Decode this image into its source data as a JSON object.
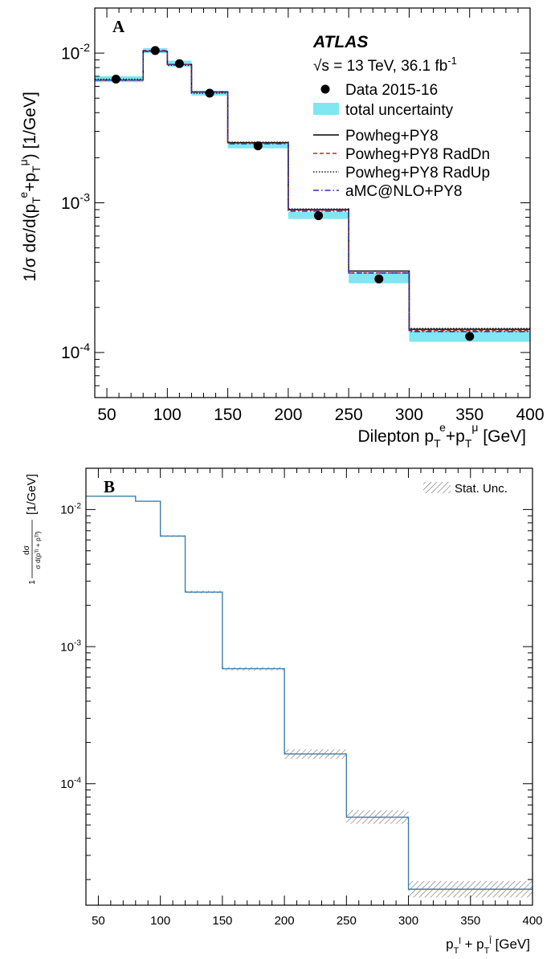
{
  "chart_data": [
    {
      "panel_label": "A",
      "type": "line",
      "xlabel": "Dilepton p_T^e + p_T^μ [GeV]",
      "ylabel": "1/σ dσ/d(p_T^e + p_T^μ) [1/GeV]",
      "xlim": [
        40,
        400
      ],
      "ylim": [
        5e-05,
        0.02
      ],
      "yscale": "log",
      "xticks": [
        50,
        100,
        150,
        200,
        250,
        300,
        350,
        400
      ],
      "yticks": [
        "10^-4",
        "10^-3",
        "10^-2"
      ],
      "experiment": "ATLAS",
      "energy_label": "√s = 13 TeV, 36.1 fb⁻¹",
      "legend_position": "top-right",
      "bin_edges": [
        40,
        80,
        100,
        120,
        150,
        200,
        250,
        300,
        400
      ],
      "series": [
        {
          "name": "Data 2015-16",
          "style": "points",
          "color": "#000000",
          "x": [
            57.5,
            90,
            110,
            135,
            175,
            225,
            275,
            350
          ],
          "values": [
            0.0067,
            0.0104,
            0.0085,
            0.0054,
            0.0024,
            0.00082,
            0.00031,
            0.000128
          ]
        },
        {
          "name": "total uncertainty",
          "style": "band",
          "color": "#7fe6f2",
          "low": [
            0.0064,
            0.01,
            0.0081,
            0.0052,
            0.00231,
            0.00078,
            0.00029,
            0.000118
          ],
          "high": [
            0.007,
            0.0108,
            0.0089,
            0.0056,
            0.0025,
            0.00087,
            0.00034,
            0.00014
          ]
        },
        {
          "name": "Powheg+PY8",
          "style": "step-solid",
          "color": "#000000",
          "values": [
            0.0066,
            0.0103,
            0.0084,
            0.0055,
            0.00252,
            0.0009,
            0.00035,
            0.000143
          ]
        },
        {
          "name": "Powheg+PY8 RadDn",
          "style": "step-dashed",
          "color": "#cc2222",
          "values": [
            0.0066,
            0.0104,
            0.0084,
            0.0055,
            0.0025,
            0.00089,
            0.00034,
            0.00014
          ]
        },
        {
          "name": "Powheg+PY8 RadUp",
          "style": "step-dotted",
          "color": "#222222",
          "values": [
            0.0067,
            0.0103,
            0.0083,
            0.0054,
            0.00254,
            0.00091,
            0.00035,
            0.000145
          ]
        },
        {
          "name": "aMC@NLO+PY8",
          "style": "step-dashdot",
          "color": "#2233aa",
          "values": [
            0.0066,
            0.0103,
            0.0084,
            0.0055,
            0.00248,
            0.00088,
            0.00034,
            0.000138
          ]
        }
      ]
    },
    {
      "panel_label": "B",
      "type": "line",
      "xlabel": "p_T^l + p_T^l̄ [GeV]",
      "ylabel": "1/σ dσ/d(p_T^l + p_T^l̄) [1/GeV]",
      "xlim": [
        40,
        400
      ],
      "ylim": [
        1.3e-05,
        0.02
      ],
      "yscale": "log",
      "xticks": [
        50,
        100,
        150,
        200,
        250,
        300,
        350,
        400
      ],
      "yticks": [
        "10^-4",
        "10^-3",
        "10^-2"
      ],
      "legend_position": "top-right",
      "bin_edges": [
        40,
        80,
        100,
        120,
        150,
        200,
        250,
        300,
        400
      ],
      "series": [
        {
          "name": "",
          "style": "step-solid",
          "color": "#3d7fa8",
          "values": [
            0.0125,
            0.0115,
            0.0064,
            0.0025,
            0.00069,
            0.000165,
            5.7e-05,
            1.7e-05
          ]
        },
        {
          "name": "Stat. Unc.",
          "style": "hatched-band",
          "color": "#888888",
          "low": [
            0.0125,
            0.0114,
            0.0063,
            0.00245,
            0.00067,
            0.000152,
            5.1e-05,
            1.48e-05
          ],
          "high": [
            0.0126,
            0.0116,
            0.0065,
            0.00256,
            0.00071,
            0.000178,
            6.4e-05,
            1.95e-05
          ]
        }
      ]
    }
  ]
}
